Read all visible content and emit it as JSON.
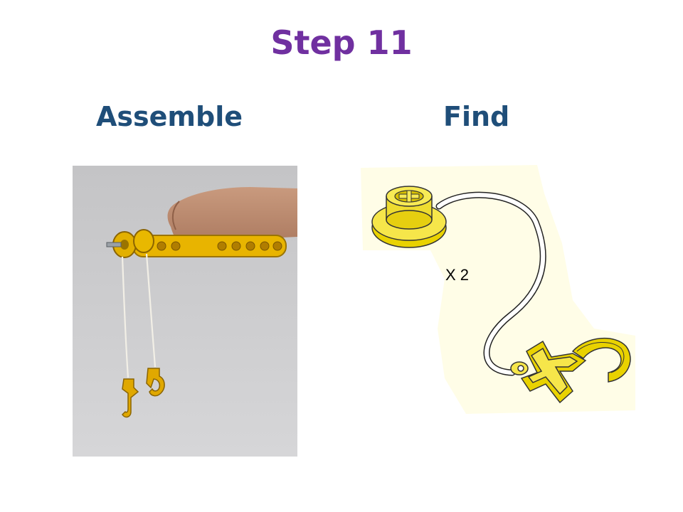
{
  "slide": {
    "title": "Step 11",
    "assemble_heading": "Assemble",
    "find_heading": "Find",
    "quantity_label": "X 2"
  },
  "colors": {
    "title": "#7030a0",
    "heading": "#1f4e79",
    "part_yellow": "#f2e020",
    "part_outline": "#333333",
    "photo_background": "#c9c9cb"
  },
  "figures": {
    "assemble_photo": "hand holding yellow beam with pulley, two strings with hooks",
    "find_illustration": "pulley with string attached to hook"
  }
}
